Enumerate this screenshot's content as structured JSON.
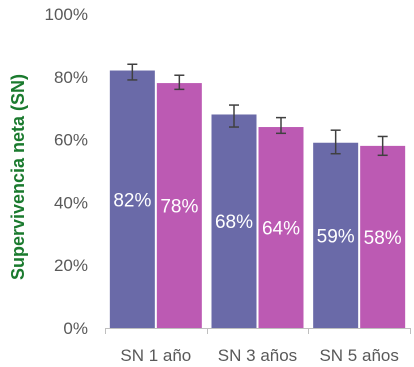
{
  "chart_data": {
    "type": "bar",
    "title": "",
    "xlabel": "",
    "ylabel": "Supervivencia neta (SN)",
    "ylim": [
      0,
      100
    ],
    "yticks": [
      0,
      20,
      40,
      60,
      80,
      100
    ],
    "ytick_labels": [
      "0%",
      "20%",
      "40%",
      "60%",
      "80%",
      "100%"
    ],
    "categories": [
      "SN 1 año",
      "SN 3 años",
      "SN 5 años"
    ],
    "grid": false,
    "legend": "none",
    "series": [
      {
        "color": "#6a6aa8",
        "values": [
          82,
          68,
          59
        ],
        "labels": [
          "82%",
          "68%",
          "59%"
        ],
        "error": [
          [
            79,
            84
          ],
          [
            64,
            71
          ],
          [
            55.5,
            63
          ]
        ]
      },
      {
        "color": "#bc5ab3",
        "values": [
          78,
          64,
          58
        ],
        "labels": [
          "78%",
          "64%",
          "58%"
        ],
        "error": [
          [
            76,
            80.5
          ],
          [
            62,
            67
          ],
          [
            55,
            61
          ]
        ]
      }
    ],
    "ylabel_color": "#1a7a2e",
    "axis_color": "#bfbfbf",
    "errorbar_color": "#404040"
  }
}
